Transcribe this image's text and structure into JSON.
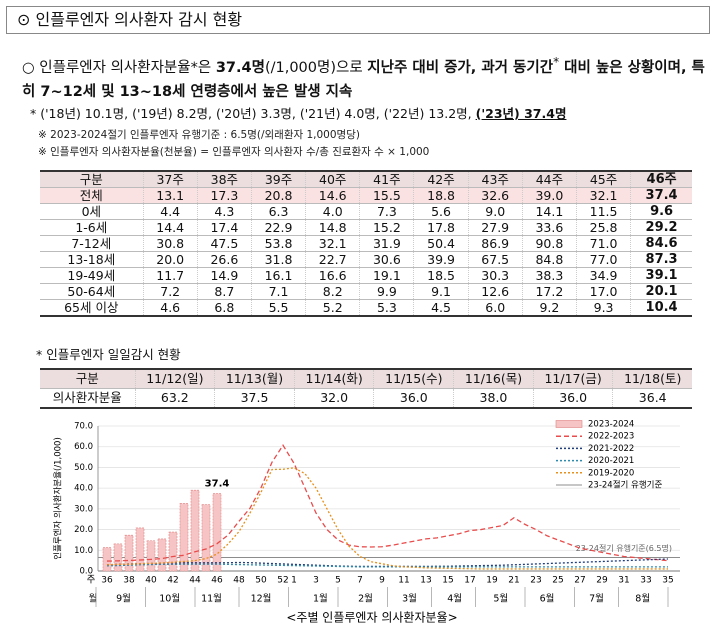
{
  "header": {
    "bullet": "⊙",
    "title": "인플루엔자 의사환자 감시 현황"
  },
  "summary": [
    "○",
    "인플루엔자 의사환자분율*은 ",
    "37.4명",
    "(/1,000명)으로 ",
    "지난주 대비 증가, 과거 동기간",
    "*",
    " 대비 높은 상황이며, 특히 7~12세 및 13~18세 연령층에서 높은 발생 지속"
  ],
  "footnote": [
    "* ('18년) 10.1명, ('19년) 8.2명, ('20년) 3.3명, ('21년) 4.0명, ('22년) 13.2명, ",
    "('23년) 37.4명"
  ],
  "notes": [
    "※ 2023-2024절기 인플루엔자 유행기준 : 6.5명(/외래환자 1,000명당)",
    "※ 인플루엔자 의사환자분율(천분율) = 인플루엔자 의사환자 수/총 진료환자 수 × 1,000"
  ],
  "weekly_table": {
    "header": [
      "구분",
      "37주",
      "38주",
      "39주",
      "40주",
      "41주",
      "42주",
      "43주",
      "44주",
      "45주",
      "46주"
    ],
    "rows": [
      [
        "전체",
        "13.1",
        "17.3",
        "20.8",
        "14.6",
        "15.5",
        "18.8",
        "32.6",
        "39.0",
        "32.1",
        "37.4"
      ],
      [
        "0세",
        "4.4",
        "4.3",
        "6.3",
        "4.0",
        "7.3",
        "5.6",
        "9.0",
        "14.1",
        "11.5",
        "9.6"
      ],
      [
        "1-6세",
        "14.4",
        "17.4",
        "22.9",
        "14.8",
        "15.2",
        "17.8",
        "27.9",
        "33.6",
        "25.8",
        "29.2"
      ],
      [
        "7-12세",
        "30.8",
        "47.5",
        "53.8",
        "32.1",
        "31.9",
        "50.4",
        "86.9",
        "90.8",
        "71.0",
        "84.6"
      ],
      [
        "13-18세",
        "20.0",
        "26.6",
        "31.8",
        "22.7",
        "30.6",
        "39.9",
        "67.5",
        "84.8",
        "77.0",
        "87.3"
      ],
      [
        "19-49세",
        "11.7",
        "14.9",
        "16.1",
        "16.6",
        "19.1",
        "18.5",
        "30.3",
        "38.3",
        "34.9",
        "39.1"
      ],
      [
        "50-64세",
        "7.2",
        "8.7",
        "7.1",
        "8.2",
        "9.9",
        "9.1",
        "12.6",
        "17.2",
        "17.0",
        "20.1"
      ],
      [
        "65세 이상",
        "4.6",
        "6.8",
        "5.5",
        "5.2",
        "5.3",
        "4.5",
        "6.0",
        "9.2",
        "9.3",
        "10.4"
      ]
    ]
  },
  "daily_title": "* 인플루엔자 일일감시 현황",
  "daily_table": {
    "header": [
      "구분",
      "11/12(일)",
      "11/13(월)",
      "11/14(화)",
      "11/15(수)",
      "11/16(목)",
      "11/17(금)",
      "11/18(토)"
    ],
    "rows": [
      [
        "의사환자분율",
        "63.2",
        "37.5",
        "32.0",
        "36.0",
        "38.0",
        "36.0",
        "36.4"
      ]
    ]
  },
  "chart_data": {
    "type": "line",
    "caption": "<주별 인플루엔자 의사환자분율>",
    "ylabel": "인플루엔자 의사환자분율(/1,000)",
    "xlabel_week": "주",
    "xlabel_month": "월",
    "categories": [
      "36",
      null,
      "38",
      null,
      "40",
      null,
      "42",
      null,
      "44",
      null,
      "46",
      null,
      "48",
      null,
      "50",
      null,
      "52",
      "1",
      null,
      "3",
      null,
      "5",
      null,
      "7",
      null,
      "9",
      null,
      "11",
      null,
      "13",
      null,
      "15",
      null,
      "17",
      null,
      "19",
      null,
      "21",
      null,
      "23",
      null,
      "25",
      null,
      "27",
      null,
      "29",
      null,
      "31",
      null,
      "33",
      null,
      "35"
    ],
    "months": [
      "9월",
      "10월",
      "11월",
      "12월",
      "1월",
      "2월",
      "3월",
      "4월",
      "5월",
      "6월",
      "7월",
      "8월"
    ],
    "ylim": [
      0,
      70
    ],
    "yticks": [
      {
        "value": 0,
        "label": "0.0"
      },
      {
        "value": 10,
        "label": "10.0"
      },
      {
        "value": 20,
        "label": "20.0"
      },
      {
        "value": 30,
        "label": "30.0"
      },
      {
        "value": 40,
        "label": "40.0"
      },
      {
        "value": 50,
        "label": "50.0"
      },
      {
        "value": 60,
        "label": "60.0"
      },
      {
        "value": 70,
        "label": "70.0"
      }
    ],
    "grid": true,
    "legend": "upper right",
    "series": [
      {
        "name": "2023-2024",
        "type": "bar",
        "color": "#f6c4c4",
        "values": [
          11.3,
          13.1,
          17.3,
          20.8,
          14.6,
          15.5,
          18.8,
          32.6,
          39.0,
          32.1,
          37.4,
          null,
          null,
          null,
          null,
          null,
          null,
          null,
          null,
          null,
          null,
          null,
          null,
          null,
          null,
          null,
          null,
          null,
          null,
          null,
          null,
          null,
          null,
          null,
          null,
          null,
          null,
          null,
          null,
          null,
          null,
          null,
          null,
          null,
          null,
          null,
          null,
          null,
          null,
          null,
          null,
          null
        ],
        "value_labels": [
          null,
          null,
          null,
          null,
          null,
          null,
          null,
          null,
          null,
          null,
          "37.4",
          null,
          null,
          null,
          null,
          null,
          null,
          null,
          null,
          null,
          null,
          null,
          null,
          null,
          null,
          null,
          null,
          null,
          null,
          null,
          null,
          null,
          null,
          null,
          null,
          null,
          null,
          null,
          null,
          null,
          null,
          null,
          null,
          null,
          null,
          null,
          null,
          null,
          null,
          null,
          null,
          null
        ]
      },
      {
        "name": "2022-2023",
        "type": "line",
        "color": "#e84c4c",
        "dash": "5,3",
        "values": [
          4.8,
          4.9,
          5.1,
          5.3,
          5.6,
          6.0,
          7.0,
          7.6,
          9.3,
          10.6,
          13.2,
          17.3,
          24.0,
          30.3,
          40.2,
          52.5,
          60.7,
          52.0,
          40.0,
          28.0,
          20.0,
          15.0,
          12.5,
          11.7,
          11.6,
          11.7,
          12.5,
          13.5,
          14.5,
          15.5,
          16.0,
          17.0,
          18.0,
          19.5,
          20.0,
          21.0,
          22.0,
          25.7,
          22.5,
          20.0,
          17.0,
          15.0,
          13.0,
          11.0,
          10.0,
          9.0,
          8.0,
          7.0,
          6.5,
          6.0,
          5.5,
          5.0
        ]
      },
      {
        "name": "2021-2022",
        "type": "line",
        "color": "#1f3d7a",
        "dash": "2,2",
        "values": [
          3.0,
          3.2,
          3.4,
          3.5,
          3.6,
          3.8,
          3.9,
          4.0,
          4.0,
          4.0,
          4.0,
          4.0,
          4.1,
          4.0,
          3.8,
          3.6,
          3.4,
          3.2,
          3.0,
          2.8,
          2.6,
          2.4,
          2.3,
          2.2,
          2.2,
          2.2,
          2.2,
          2.2,
          2.2,
          2.2,
          2.3,
          2.3,
          2.4,
          2.5,
          2.6,
          2.7,
          2.8,
          3.0,
          3.2,
          3.4,
          3.6,
          3.8,
          4.0,
          4.2,
          4.4,
          4.6,
          4.8,
          5.0,
          5.2,
          5.4,
          5.6,
          5.8
        ]
      },
      {
        "name": "2020-2021",
        "type": "line",
        "color": "#2e8bb0",
        "dash": "2,2",
        "values": [
          2.5,
          2.6,
          2.8,
          3.0,
          3.1,
          3.2,
          3.2,
          3.3,
          3.3,
          3.3,
          3.3,
          3.2,
          3.1,
          3.0,
          2.9,
          2.8,
          2.7,
          2.6,
          2.5,
          2.4,
          2.3,
          2.2,
          2.1,
          2.0,
          2.0,
          2.0,
          2.0,
          2.0,
          2.0,
          2.0,
          2.0,
          2.0,
          2.0,
          2.0,
          2.0,
          2.0,
          2.0,
          2.0,
          2.0,
          2.0,
          2.0,
          2.0,
          2.0,
          2.0,
          2.0,
          2.0,
          2.0,
          2.0,
          2.0,
          2.0,
          2.0,
          2.0
        ]
      },
      {
        "name": "2019-2020",
        "type": "line",
        "color": "#e8901c",
        "dash": "2,2",
        "values": [
          3.0,
          3.2,
          3.3,
          3.5,
          3.7,
          3.9,
          4.2,
          4.6,
          5.0,
          6.0,
          8.2,
          13.0,
          19.0,
          28.0,
          38.0,
          49.0,
          49.1,
          49.8,
          47.0,
          40.0,
          30.0,
          20.0,
          12.0,
          7.0,
          4.5,
          3.5,
          2.5,
          2.0,
          1.8,
          1.5,
          1.4,
          1.3,
          1.2,
          1.1,
          1.0,
          1.0,
          1.0,
          1.0,
          1.0,
          1.0,
          1.0,
          1.0,
          1.0,
          1.0,
          1.0,
          1.0,
          1.0,
          1.0,
          1.0,
          1.0,
          1.0,
          1.0
        ]
      }
    ],
    "threshold": {
      "name": "23-24절기 유행기준",
      "value": 6.5,
      "label": "23-24절기 유행기준(6.5명)",
      "color": "#8c8c8c"
    }
  }
}
